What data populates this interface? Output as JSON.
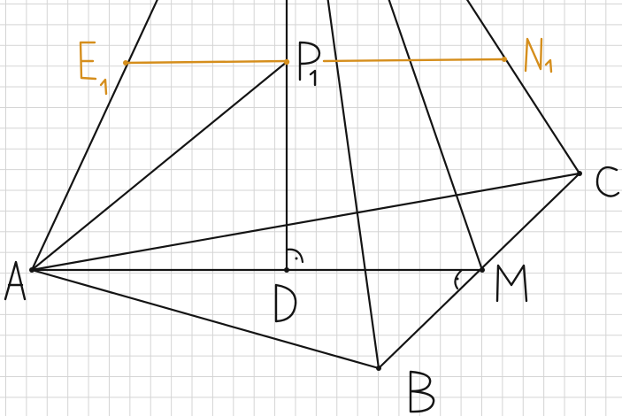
{
  "figure": {
    "type": "pyramid-cross-section-sketch",
    "colors": {
      "grid": "#d4d4d4",
      "edges": "#141414",
      "section": "#d58e1c"
    },
    "points": [
      {
        "id": "A",
        "label": "A"
      },
      {
        "id": "B",
        "label": "B"
      },
      {
        "id": "C",
        "label": "C"
      },
      {
        "id": "D",
        "label": "D"
      },
      {
        "id": "M",
        "label": "M"
      },
      {
        "id": "P1",
        "label": "P1"
      },
      {
        "id": "E1",
        "label": "E1"
      },
      {
        "id": "N1",
        "label": "N1"
      }
    ],
    "right_angle_marks": [
      "D",
      "M"
    ]
  }
}
